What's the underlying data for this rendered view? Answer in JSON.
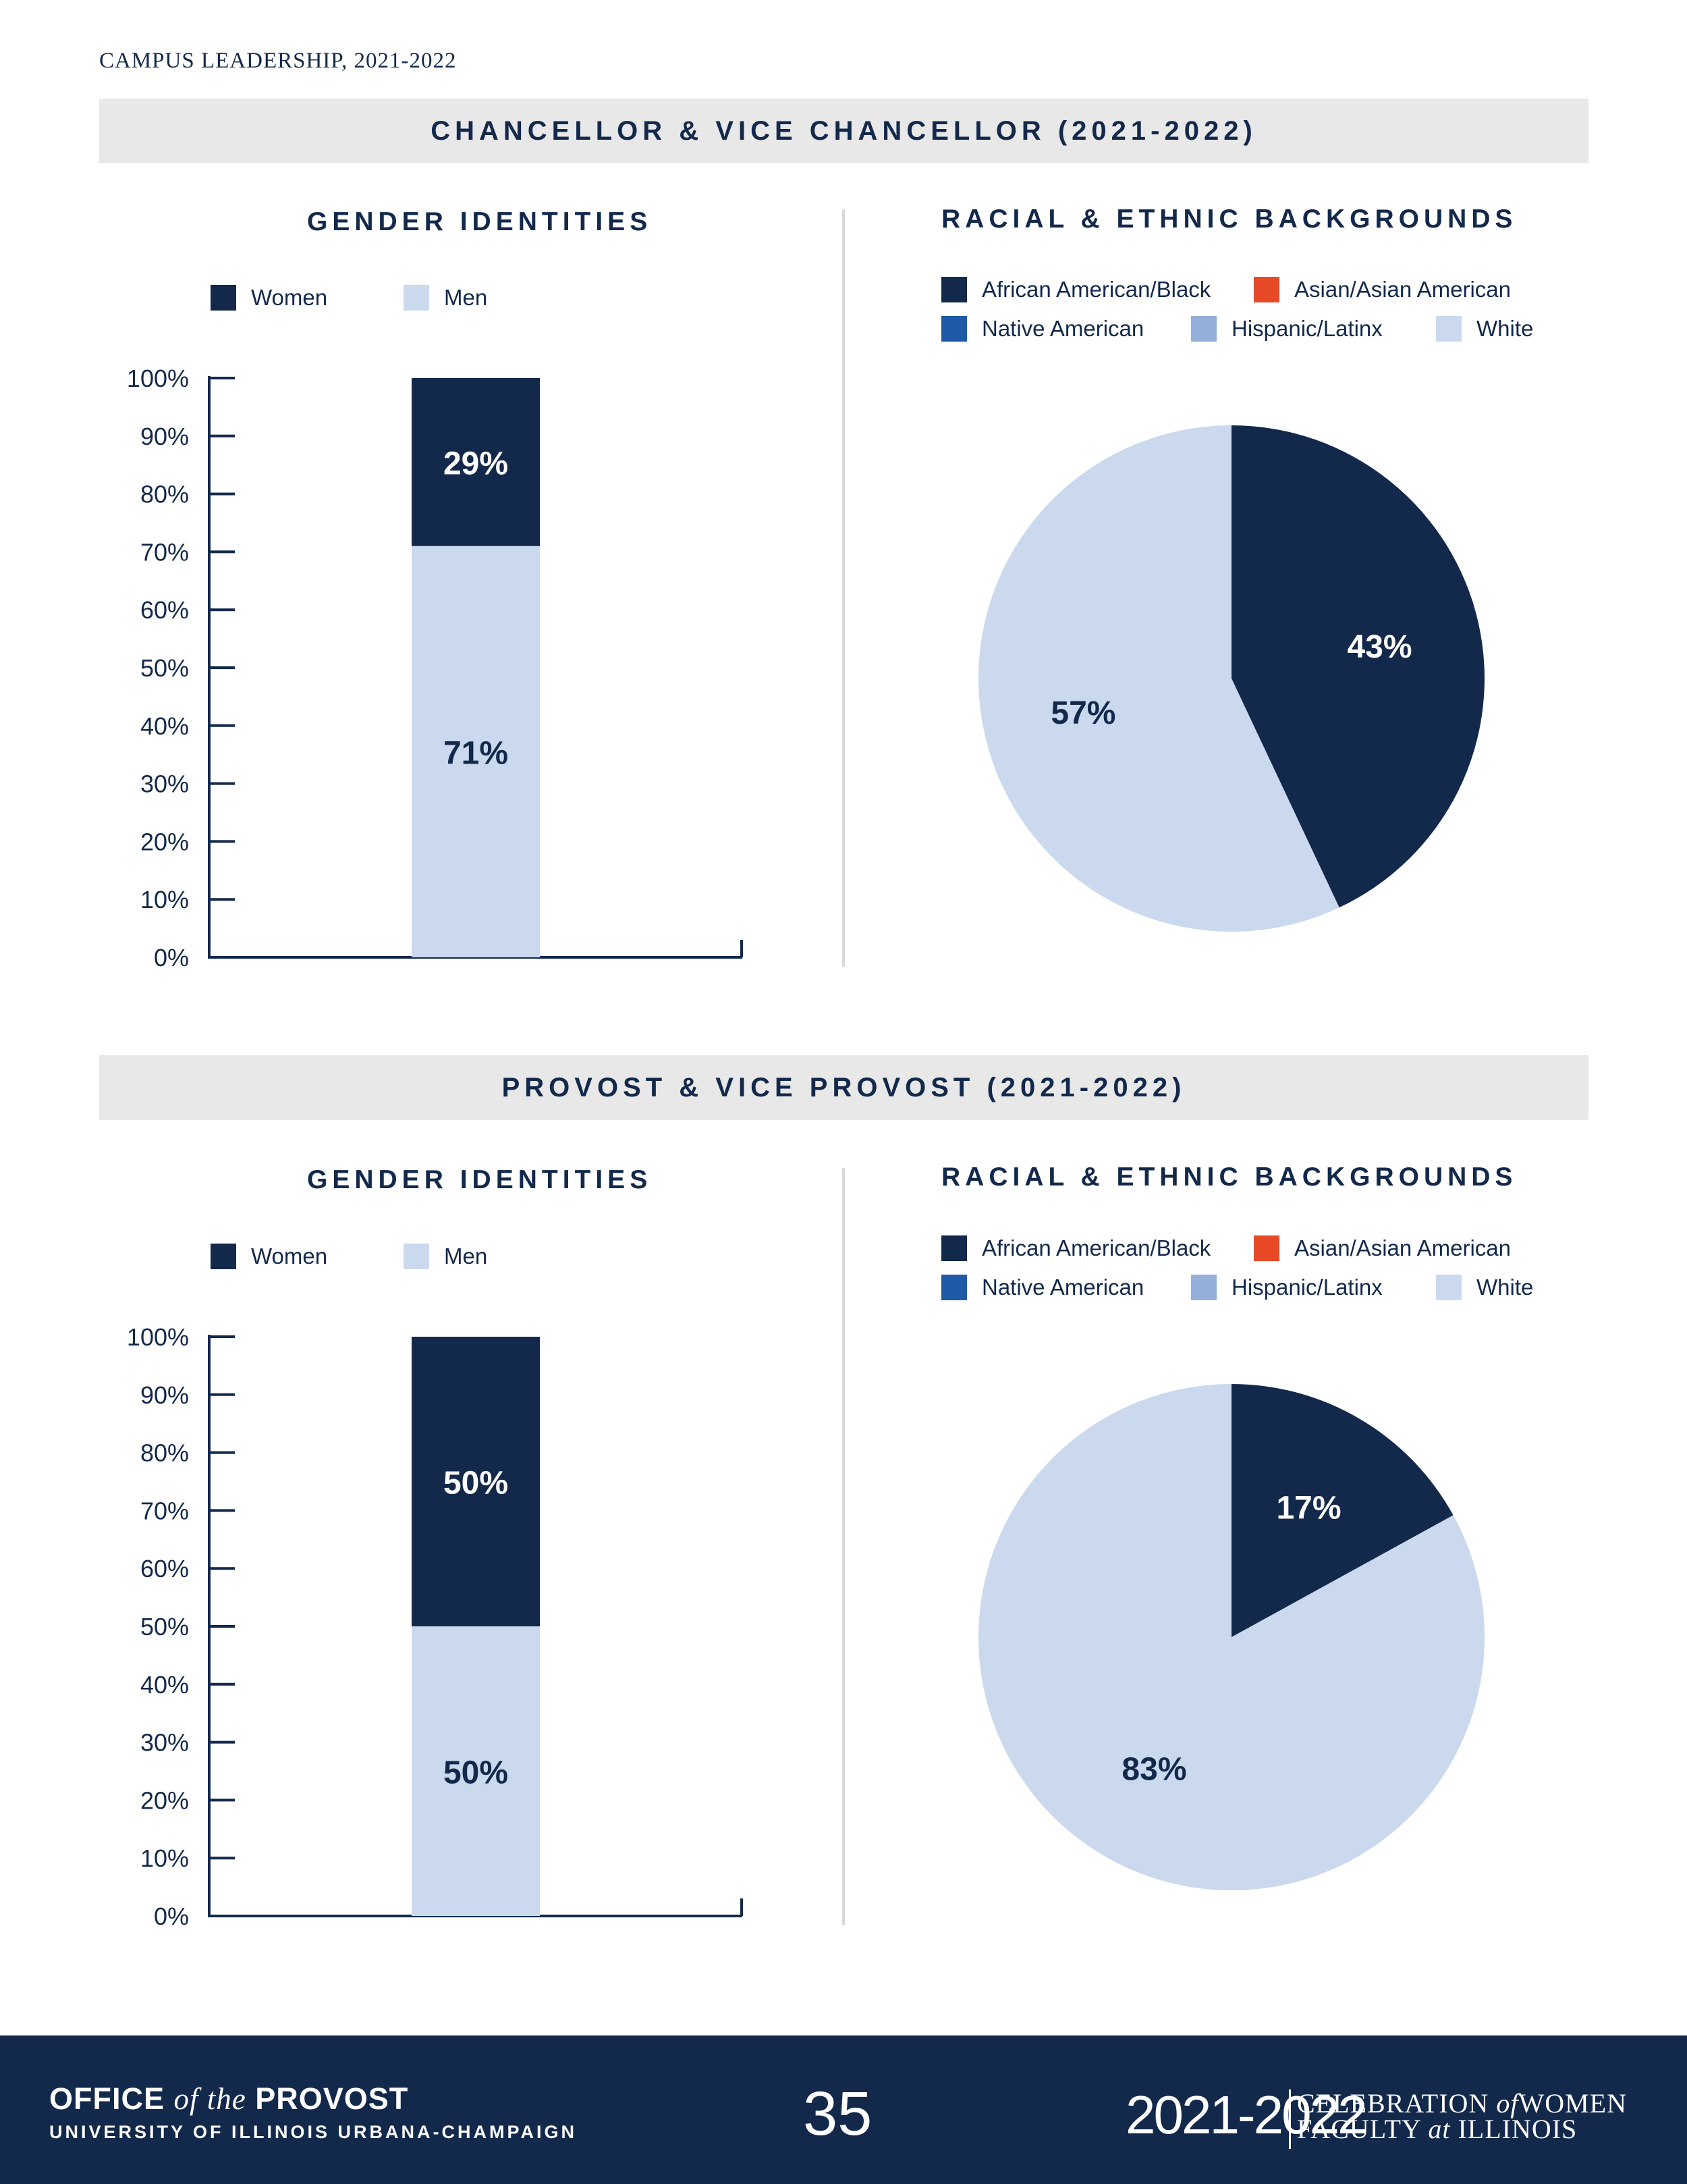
{
  "running_head": "CAMPUS LEADERSHIP, 2021-2022",
  "section_labels": {
    "gender": "GENDER IDENTITIES",
    "race": "RACIAL & ETHNIC BACKGROUNDS"
  },
  "legend": {
    "gender": [
      {
        "label": "Women",
        "color": "#13294b"
      },
      {
        "label": "Men",
        "color": "#cad9ee"
      }
    ],
    "race": [
      {
        "label": "African American/Black",
        "color": "#13294b"
      },
      {
        "label": "Asian/Asian American",
        "color": "#e84a27"
      },
      {
        "label": "Native American",
        "color": "#1f5aa6"
      },
      {
        "label": "Hispanic/Latinx",
        "color": "#95b0d8"
      },
      {
        "label": "White",
        "color": "#cad9ee"
      }
    ]
  },
  "y_ticks": [
    "100%",
    "90%",
    "80%",
    "70%",
    "60%",
    "50%",
    "40%",
    "30%",
    "20%",
    "10%",
    "0%"
  ],
  "chart_data": [
    {
      "type": "bar",
      "panel": "CHANCELLOR & VICE CHANCELLOR (2021-2022)",
      "title": "GENDER IDENTITIES",
      "stacked": true,
      "ylim": [
        0,
        100
      ],
      "series": [
        {
          "name": "Men",
          "value": 71,
          "label": "71%",
          "color": "#cad9ee"
        },
        {
          "name": "Women",
          "value": 29,
          "label": "29%",
          "color": "#13294b"
        }
      ]
    },
    {
      "type": "pie",
      "panel": "CHANCELLOR & VICE CHANCELLOR (2021-2022)",
      "title": "RACIAL & ETHNIC BACKGROUNDS",
      "slices": [
        {
          "name": "African American/Black",
          "value": 43,
          "label": "43%",
          "color": "#13294b",
          "text_color": "#ffffff"
        },
        {
          "name": "White",
          "value": 57,
          "label": "57%",
          "color": "#cad9ee",
          "text_color": "#13294b"
        }
      ]
    },
    {
      "type": "bar",
      "panel": "PROVOST & VICE PROVOST (2021-2022)",
      "title": "GENDER IDENTITIES",
      "stacked": true,
      "ylim": [
        0,
        100
      ],
      "series": [
        {
          "name": "Men",
          "value": 50,
          "label": "50%",
          "color": "#cad9ee"
        },
        {
          "name": "Women",
          "value": 50,
          "label": "50%",
          "color": "#13294b"
        }
      ]
    },
    {
      "type": "pie",
      "panel": "PROVOST & VICE PROVOST (2021-2022)",
      "title": "RACIAL & ETHNIC BACKGROUNDS",
      "slices": [
        {
          "name": "African American/Black",
          "value": 17,
          "label": "17%",
          "color": "#13294b",
          "text_color": "#ffffff"
        },
        {
          "name": "White",
          "value": 83,
          "label": "83%",
          "color": "#cad9ee",
          "text_color": "#13294b"
        }
      ]
    }
  ],
  "footer": {
    "office_pre": "OFFICE ",
    "office_of_the": "of the",
    "office_post": " PROVOST",
    "university": "UNIVERSITY OF ILLINOIS URBANA-CHAMPAIGN",
    "page_number": "35",
    "year": "2021-2022",
    "celebration_line1_pre": "CELEBRATION ",
    "celebration_line1_of": "of",
    "celebration_line1_post": "WOMEN",
    "celebration_line2_pre": "FACULTY ",
    "celebration_line2_at": "at",
    "celebration_line2_post": " ILLINOIS"
  }
}
